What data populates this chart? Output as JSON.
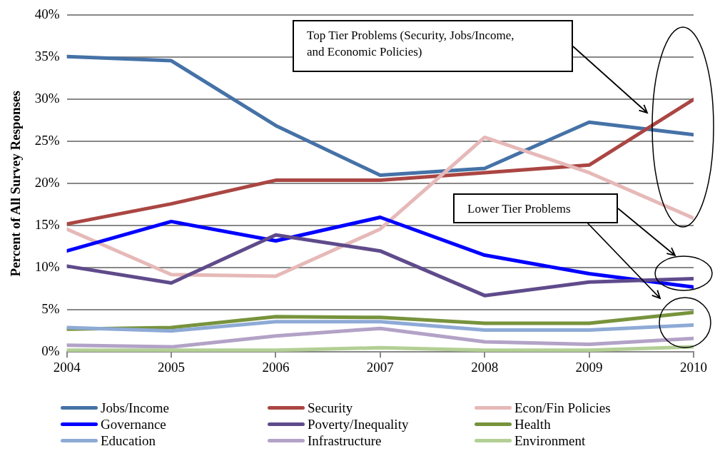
{
  "chart_data": {
    "type": "line",
    "ylabel": "Percent of All Survey Responses",
    "x": [
      2004,
      2005,
      2006,
      2007,
      2008,
      2009,
      2010
    ],
    "xlim": [
      2004,
      2010
    ],
    "xticks": [
      2004,
      2005,
      2006,
      2007,
      2008,
      2009,
      2010
    ],
    "ylim": [
      0,
      40
    ],
    "yticks": [
      {
        "value": 0,
        "label": "0%"
      },
      {
        "value": 5,
        "label": "5%"
      },
      {
        "value": 10,
        "label": "10%"
      },
      {
        "value": 15,
        "label": "15%"
      },
      {
        "value": 20,
        "label": "20%"
      },
      {
        "value": 25,
        "label": "25%"
      },
      {
        "value": 30,
        "label": "30%"
      },
      {
        "value": 35,
        "label": "35%"
      },
      {
        "value": 40,
        "label": "40%"
      }
    ],
    "grid": "y",
    "legend": "bottom",
    "marker": "none",
    "line_style": "solid",
    "annotations": [
      "Top Tier Problems (Security, Jobs/Income, and Economic Policies)",
      "Lower Tier Problems"
    ],
    "series": [
      {
        "name": "Jobs/Income",
        "color": "#4572a7",
        "values": [
          35.1,
          34.6,
          26.9,
          21.0,
          21.8,
          27.3,
          25.8
        ]
      },
      {
        "name": "Security",
        "color": "#aa4643",
        "values": [
          15.2,
          17.6,
          20.4,
          20.4,
          21.3,
          22.2,
          30.0
        ]
      },
      {
        "name": "Econ/Fin Policies",
        "color": "#e6b9b8",
        "values": [
          14.6,
          9.2,
          9.0,
          14.6,
          25.5,
          21.3,
          15.9
        ]
      },
      {
        "name": "Governance",
        "color": "#0000ff",
        "values": [
          12.0,
          15.5,
          13.2,
          16.0,
          11.5,
          9.3,
          7.7
        ]
      },
      {
        "name": "Poverty/Inequality",
        "color": "#5f4b8b",
        "values": [
          10.2,
          8.2,
          13.9,
          12.0,
          6.7,
          8.3,
          8.7
        ]
      },
      {
        "name": "Health",
        "color": "#77933c",
        "values": [
          2.7,
          2.9,
          4.2,
          4.1,
          3.4,
          3.4,
          4.7
        ]
      },
      {
        "name": "Education",
        "color": "#8eaad6",
        "values": [
          2.9,
          2.5,
          3.6,
          3.6,
          2.6,
          2.6,
          3.2
        ]
      },
      {
        "name": "Infrastructure",
        "color": "#b3a2c7",
        "values": [
          0.8,
          0.6,
          1.9,
          2.8,
          1.2,
          0.9,
          1.6
        ]
      },
      {
        "name": "Environment",
        "color": "#b3cf95",
        "values": [
          0.2,
          0.2,
          0.2,
          0.5,
          0.2,
          0.2,
          0.6
        ]
      }
    ]
  }
}
